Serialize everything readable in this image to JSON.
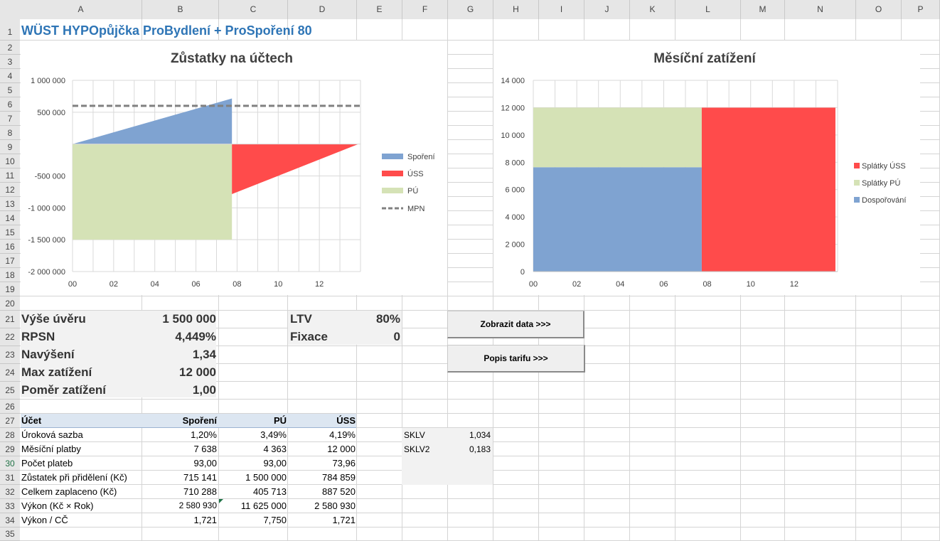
{
  "columns": [
    "A",
    "B",
    "C",
    "D",
    "E",
    "F",
    "G",
    "H",
    "I",
    "J",
    "K",
    "L",
    "M",
    "N",
    "O",
    "P"
  ],
  "title": "WÜST HYPOpůjčka ProBydlení + ProSpoření 80",
  "summary_left": [
    {
      "label": "Výše úvěru",
      "value": "1 500 000"
    },
    {
      "label": "RPSN",
      "value": "4,449%"
    },
    {
      "label": "Navýšení",
      "value": "1,34"
    },
    {
      "label": "Max zatížení",
      "value": "12 000"
    },
    {
      "label": "Poměr zatížení",
      "value": "1,00"
    }
  ],
  "summary_right": [
    {
      "label": "LTV",
      "value": "80%"
    },
    {
      "label": "Fixace",
      "value": "0"
    }
  ],
  "buttons": {
    "show_data": "Zobrazit data >>>",
    "tariff": "Popis tarifu >>>"
  },
  "table": {
    "headers": [
      "Účet",
      "Spoření",
      "PÚ",
      "ÚSS"
    ],
    "rows": [
      [
        "Úroková sazba",
        "1,20%",
        "3,49%",
        "4,19%"
      ],
      [
        "Měsíční platby",
        "7 638",
        "4 363",
        "12 000"
      ],
      [
        "Počet plateb",
        "93,00",
        "93,00",
        "73,96"
      ],
      [
        "Zůstatek při přidělení (Kč)",
        "715 141",
        "1 500 000",
        "784 859"
      ],
      [
        "Celkem zaplaceno (Kč)",
        "710 288",
        "405 713",
        "887 520"
      ],
      [
        "Výkon (Kč × Rok)",
        "2 580 930",
        "11 625 000",
        "2 580 930"
      ],
      [
        "Výkon / CČ",
        "1,721",
        "7,750",
        "1,721"
      ]
    ]
  },
  "sklv": [
    {
      "label": "SKLV",
      "value": "1,034"
    },
    {
      "label": "SKLV2",
      "value": "0,183"
    }
  ],
  "chart_data": [
    {
      "type": "area",
      "title": "Zůstatky na účtech",
      "x_ticks": [
        "00",
        "02",
        "04",
        "06",
        "08",
        "10",
        "12"
      ],
      "xlim": [
        0,
        14
      ],
      "ylim": [
        -2000000,
        1000000
      ],
      "y_ticks": [
        {
          "v": 1000000,
          "t": "1 000 000"
        },
        {
          "v": 500000,
          "t": "500 000"
        },
        {
          "v": -500000,
          "t": "-500 000"
        },
        {
          "v": -1000000,
          "t": "-1 000 000"
        },
        {
          "v": -1500000,
          "t": "-1 500 000"
        },
        {
          "v": -2000000,
          "t": "-2 000 000"
        }
      ],
      "legend_position": "right",
      "series": [
        {
          "name": "Spoření",
          "color": "#7fa3d1",
          "points": [
            [
              0,
              0
            ],
            [
              7.75,
              715141
            ]
          ]
        },
        {
          "name": "ÚSS",
          "color": "#ff4b4b",
          "points": [
            [
              7.75,
              -784859
            ],
            [
              13.9,
              0
            ]
          ]
        },
        {
          "name": "PÚ",
          "color": "#d5e2b6",
          "points": [
            [
              0,
              -1500000
            ],
            [
              7.75,
              -1500000
            ]
          ]
        },
        {
          "name": "MPN",
          "color": "#808080",
          "value": 600000
        }
      ]
    },
    {
      "type": "area",
      "title": "Měsíční zatížení",
      "x_ticks": [
        "00",
        "02",
        "04",
        "06",
        "08",
        "10",
        "12"
      ],
      "xlim": [
        0,
        14
      ],
      "ylim": [
        0,
        14000
      ],
      "y_ticks": [
        {
          "v": 14000,
          "t": "14 000"
        },
        {
          "v": 12000,
          "t": "12 000"
        },
        {
          "v": 10000,
          "t": "10 000"
        },
        {
          "v": 8000,
          "t": "8 000"
        },
        {
          "v": 6000,
          "t": "6 000"
        },
        {
          "v": 4000,
          "t": "4 000"
        },
        {
          "v": 2000,
          "t": "2 000"
        },
        {
          "v": 0,
          "t": "0"
        }
      ],
      "legend_position": "right",
      "series": [
        {
          "name": "Splátky ÚSS",
          "color": "#ff4b4b",
          "x_range": [
            7.75,
            13.9
          ],
          "value": 12000
        },
        {
          "name": "Splátky PÚ",
          "color": "#d5e2b6",
          "x_range": [
            0,
            7.75
          ],
          "value": 4363
        },
        {
          "name": "Dospořování",
          "color": "#7fa3d1",
          "x_range": [
            0,
            7.75
          ],
          "value": 7638
        }
      ]
    }
  ]
}
